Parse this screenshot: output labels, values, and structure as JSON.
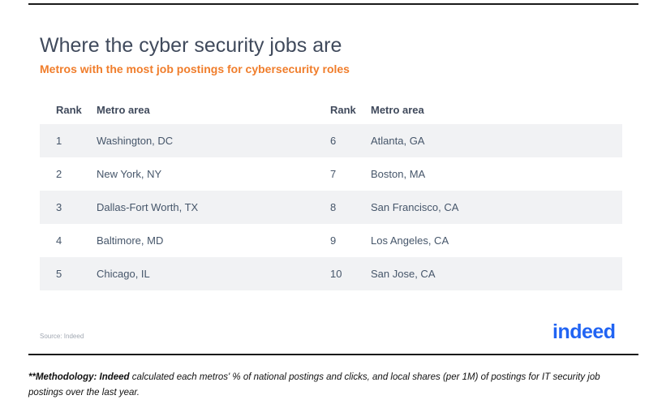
{
  "title": "Where the cyber security jobs are",
  "subtitle": "Metros with the most job postings for cybersecurity roles",
  "table": {
    "headers": {
      "rank": "Rank",
      "metro": "Metro area"
    },
    "rows": [
      {
        "rank_a": "1",
        "metro_a": "Washington, DC",
        "rank_b": "6",
        "metro_b": "Atlanta, GA"
      },
      {
        "rank_a": "2",
        "metro_a": "New York, NY",
        "rank_b": "7",
        "metro_b": "Boston, MA"
      },
      {
        "rank_a": "3",
        "metro_a": "Dallas-Fort Worth, TX",
        "rank_b": "8",
        "metro_b": "San Francisco, CA"
      },
      {
        "rank_a": "4",
        "metro_a": "Baltimore, MD",
        "rank_b": "9",
        "metro_b": "Los Angeles, CA"
      },
      {
        "rank_a": "5",
        "metro_a": "Chicago, IL",
        "rank_b": "10",
        "metro_b": "San Jose, CA"
      }
    ]
  },
  "source": "Source: Indeed",
  "logo": {
    "text": "indeed",
    "color": "#2164f3"
  },
  "methodology": {
    "prefix": "**Methodology: Indeed",
    "text": " calculated each metros' % of national postings and clicks, and local shares (per 1M) of postings for IT security job postings over the last year."
  },
  "colors": {
    "accent": "#f07d2b",
    "row_shade": "#f1f2f4",
    "title": "#404a5c"
  }
}
